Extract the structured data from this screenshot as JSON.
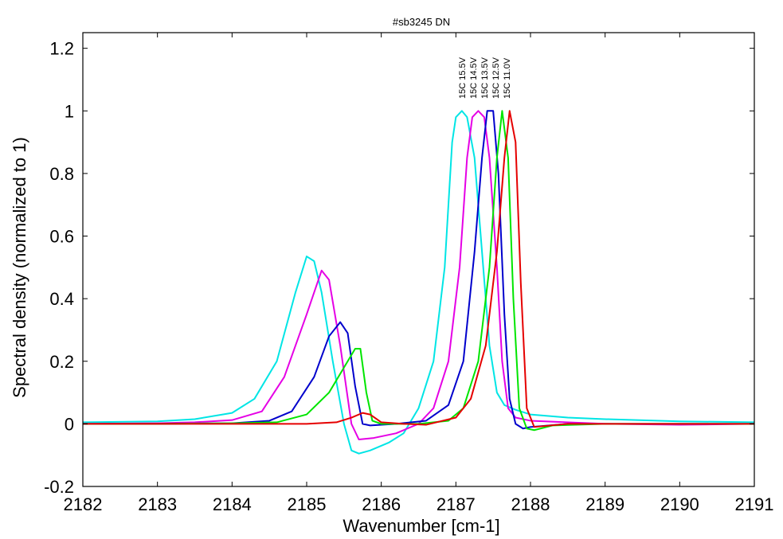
{
  "chart_data": {
    "type": "line",
    "title": "#sb3245 DN",
    "xlabel": "Wavenumber [cm-1]",
    "ylabel": "Spectral density (normalized to 1)",
    "xlim": [
      2182,
      2191
    ],
    "ylim": [
      -0.2,
      1.25
    ],
    "x_ticks": [
      2182,
      2183,
      2184,
      2185,
      2186,
      2187,
      2188,
      2189,
      2190,
      2191
    ],
    "x_tick_labels": [
      "2182",
      "2183",
      "2184",
      "2185",
      "2186",
      "2187",
      "2188",
      "2189",
      "2190",
      "2191"
    ],
    "y_ticks": [
      -0.2,
      0,
      0.2,
      0.4,
      0.6,
      0.8,
      1,
      1.2
    ],
    "y_tick_labels": [
      "-0.2",
      "0",
      "0.2",
      "0.4",
      "0.6",
      "0.8",
      "1",
      "1.2"
    ],
    "grid": false,
    "series_labels": [
      "15C 15.5V",
      "15C 14.5V",
      "15C 13.5V",
      "15C 12.5V",
      "15C 11.0V"
    ],
    "series": [
      {
        "name": "15C 15.5V",
        "color": "#00e5e5",
        "points": [
          [
            2182,
            0.005
          ],
          [
            2183,
            0.008
          ],
          [
            2183.5,
            0.015
          ],
          [
            2184,
            0.035
          ],
          [
            2184.3,
            0.08
          ],
          [
            2184.6,
            0.2
          ],
          [
            2184.85,
            0.42
          ],
          [
            2185,
            0.535
          ],
          [
            2185.1,
            0.52
          ],
          [
            2185.2,
            0.42
          ],
          [
            2185.35,
            0.2
          ],
          [
            2185.5,
            0.0
          ],
          [
            2185.6,
            -0.085
          ],
          [
            2185.7,
            -0.095
          ],
          [
            2185.85,
            -0.085
          ],
          [
            2186.1,
            -0.06
          ],
          [
            2186.3,
            -0.03
          ],
          [
            2186.5,
            0.05
          ],
          [
            2186.7,
            0.2
          ],
          [
            2186.85,
            0.5
          ],
          [
            2186.95,
            0.9
          ],
          [
            2187.0,
            0.98
          ],
          [
            2187.08,
            1.0
          ],
          [
            2187.15,
            0.98
          ],
          [
            2187.25,
            0.85
          ],
          [
            2187.35,
            0.55
          ],
          [
            2187.45,
            0.25
          ],
          [
            2187.55,
            0.1
          ],
          [
            2187.65,
            0.06
          ],
          [
            2187.8,
            0.045
          ],
          [
            2188,
            0.03
          ],
          [
            2188.5,
            0.02
          ],
          [
            2189,
            0.015
          ],
          [
            2190,
            0.008
          ],
          [
            2191,
            0.005
          ]
        ]
      },
      {
        "name": "15C 14.5V",
        "color": "#e500e5",
        "points": [
          [
            2182,
            0.0
          ],
          [
            2183,
            0.002
          ],
          [
            2183.5,
            0.005
          ],
          [
            2184,
            0.012
          ],
          [
            2184.4,
            0.04
          ],
          [
            2184.7,
            0.15
          ],
          [
            2185.0,
            0.35
          ],
          [
            2185.2,
            0.49
          ],
          [
            2185.3,
            0.46
          ],
          [
            2185.45,
            0.25
          ],
          [
            2185.6,
            0.0
          ],
          [
            2185.7,
            -0.05
          ],
          [
            2185.9,
            -0.045
          ],
          [
            2186.2,
            -0.03
          ],
          [
            2186.5,
            0.0
          ],
          [
            2186.7,
            0.05
          ],
          [
            2186.9,
            0.2
          ],
          [
            2187.05,
            0.5
          ],
          [
            2187.15,
            0.85
          ],
          [
            2187.22,
            0.98
          ],
          [
            2187.3,
            1.0
          ],
          [
            2187.38,
            0.98
          ],
          [
            2187.45,
            0.85
          ],
          [
            2187.55,
            0.5
          ],
          [
            2187.62,
            0.2
          ],
          [
            2187.7,
            0.05
          ],
          [
            2187.8,
            0.02
          ],
          [
            2188,
            0.01
          ],
          [
            2189,
            0.0
          ],
          [
            2190,
            -0.003
          ],
          [
            2191,
            0.0
          ]
        ]
      },
      {
        "name": "15C 13.5V",
        "color": "#0000cc",
        "points": [
          [
            2182,
            0.0
          ],
          [
            2183,
            0.0
          ],
          [
            2184,
            0.002
          ],
          [
            2184.5,
            0.01
          ],
          [
            2184.8,
            0.04
          ],
          [
            2185.1,
            0.15
          ],
          [
            2185.3,
            0.28
          ],
          [
            2185.45,
            0.325
          ],
          [
            2185.55,
            0.29
          ],
          [
            2185.65,
            0.12
          ],
          [
            2185.75,
            0.0
          ],
          [
            2185.85,
            -0.005
          ],
          [
            2186.2,
            0.0
          ],
          [
            2186.6,
            0.01
          ],
          [
            2186.9,
            0.06
          ],
          [
            2187.1,
            0.2
          ],
          [
            2187.25,
            0.55
          ],
          [
            2187.35,
            0.85
          ],
          [
            2187.42,
            1.0
          ],
          [
            2187.5,
            1.0
          ],
          [
            2187.57,
            0.8
          ],
          [
            2187.65,
            0.35
          ],
          [
            2187.72,
            0.08
          ],
          [
            2187.8,
            0.0
          ],
          [
            2187.9,
            -0.015
          ],
          [
            2188,
            -0.01
          ],
          [
            2188.5,
            0.0
          ],
          [
            2189,
            0.0
          ],
          [
            2191,
            0.0
          ]
        ]
      },
      {
        "name": "15C 12.5V",
        "color": "#00e500",
        "points": [
          [
            2182,
            0.0
          ],
          [
            2183,
            0.0
          ],
          [
            2184,
            0.002
          ],
          [
            2184.6,
            0.005
          ],
          [
            2185.0,
            0.03
          ],
          [
            2185.3,
            0.1
          ],
          [
            2185.5,
            0.18
          ],
          [
            2185.65,
            0.24
          ],
          [
            2185.72,
            0.24
          ],
          [
            2185.8,
            0.1
          ],
          [
            2185.88,
            0.01
          ],
          [
            2186.0,
            0.0
          ],
          [
            2186.5,
            0.0
          ],
          [
            2186.9,
            0.01
          ],
          [
            2187.1,
            0.05
          ],
          [
            2187.3,
            0.2
          ],
          [
            2187.45,
            0.5
          ],
          [
            2187.55,
            0.85
          ],
          [
            2187.62,
            1.0
          ],
          [
            2187.7,
            0.85
          ],
          [
            2187.77,
            0.4
          ],
          [
            2187.85,
            0.05
          ],
          [
            2187.95,
            -0.015
          ],
          [
            2188.05,
            -0.02
          ],
          [
            2188.3,
            -0.005
          ],
          [
            2189,
            0.0
          ],
          [
            2191,
            0.0
          ]
        ]
      },
      {
        "name": "15C 11.0V",
        "color": "#e50000",
        "points": [
          [
            2182,
            0.0
          ],
          [
            2183,
            0.0
          ],
          [
            2184,
            0.0
          ],
          [
            2185,
            0.0
          ],
          [
            2185.4,
            0.005
          ],
          [
            2185.6,
            0.02
          ],
          [
            2185.75,
            0.035
          ],
          [
            2185.85,
            0.03
          ],
          [
            2186.0,
            0.005
          ],
          [
            2186.3,
            0.0
          ],
          [
            2186.6,
            -0.003
          ],
          [
            2187.0,
            0.02
          ],
          [
            2187.2,
            0.08
          ],
          [
            2187.4,
            0.25
          ],
          [
            2187.55,
            0.55
          ],
          [
            2187.65,
            0.85
          ],
          [
            2187.72,
            1.0
          ],
          [
            2187.8,
            0.9
          ],
          [
            2187.87,
            0.45
          ],
          [
            2187.95,
            0.05
          ],
          [
            2188.05,
            -0.01
          ],
          [
            2188.5,
            0.0
          ],
          [
            2189,
            0.0
          ],
          [
            2191,
            0.0
          ]
        ]
      }
    ]
  }
}
